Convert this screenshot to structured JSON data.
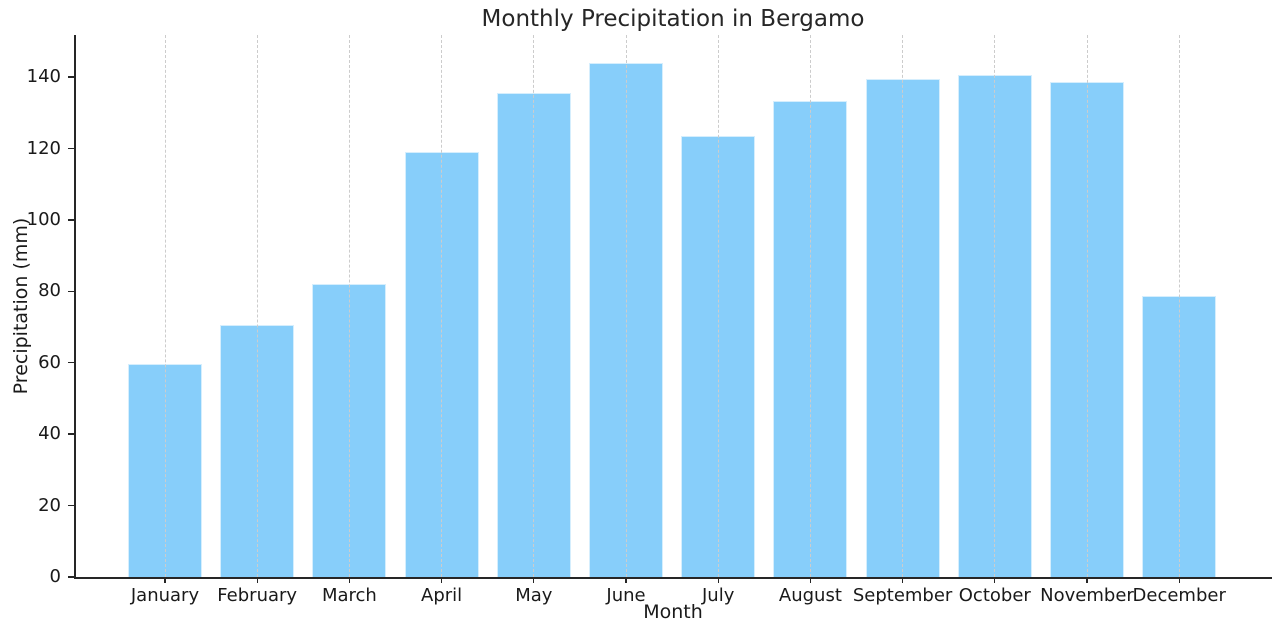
{
  "chart_data": {
    "type": "bar",
    "title": "Monthly Precipitation in Bergamo",
    "xlabel": "Month",
    "ylabel": "Precipitation (mm)",
    "categories": [
      "January",
      "February",
      "March",
      "April",
      "May",
      "June",
      "July",
      "August",
      "September",
      "October",
      "November",
      "December"
    ],
    "values": [
      59.6,
      70.5,
      82.0,
      119.0,
      135.5,
      144.0,
      123.5,
      133.3,
      139.4,
      140.6,
      138.6,
      78.6
    ],
    "ylim": [
      0,
      151.8
    ],
    "yticks": [
      0,
      20,
      40,
      60,
      80,
      100,
      120,
      140
    ],
    "grid": {
      "axis": "x",
      "line_style": "dashed",
      "drawn_over_bars": true
    },
    "legend_position": "none",
    "colors": {
      "bar_fill": "#87CEFA",
      "bar_edge": "#ffffff",
      "axis": "#262626",
      "grid": "#cccccc",
      "text": "#1a1a1a",
      "background": "#ffffff"
    }
  }
}
